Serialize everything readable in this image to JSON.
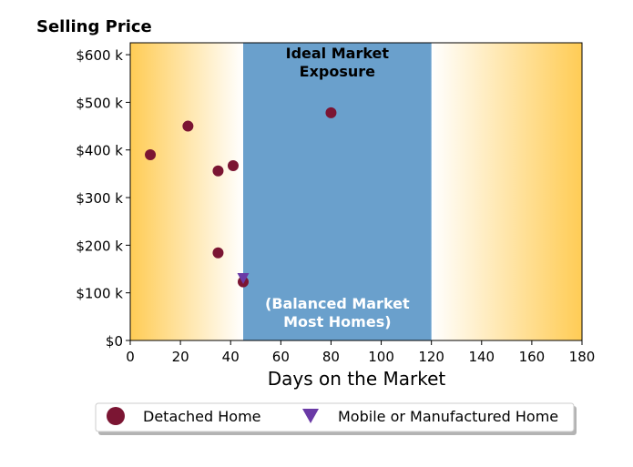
{
  "chart_data": {
    "type": "scatter",
    "title": "Selling Price",
    "xlabel": "Days on the Market",
    "ylabel": "",
    "xlim": [
      0,
      180
    ],
    "ylim": [
      0,
      625000
    ],
    "x_ticks": [
      0,
      20,
      40,
      60,
      80,
      100,
      120,
      140,
      160,
      180
    ],
    "x_tick_labels": [
      "0",
      "20",
      "40",
      "60",
      "80",
      "100",
      "120",
      "140",
      "160",
      "180"
    ],
    "y_ticks": [
      0,
      100000,
      200000,
      300000,
      400000,
      500000,
      600000
    ],
    "y_tick_labels": [
      "$0",
      "$100 k",
      "$200 k",
      "$300 k",
      "$400 k",
      "$500 k",
      "$600 k"
    ],
    "grid": false,
    "legend_position": "bottom-center",
    "background_gradient": {
      "edge_color": "#ffcc55",
      "center_color": "#ffffff",
      "fade_range": [
        0,
        45
      ],
      "fade_range_right": [
        120,
        180
      ]
    },
    "band": {
      "x_range": [
        45,
        120
      ],
      "color": "#6aa0cc",
      "label_top": [
        "Ideal Market",
        "Exposure"
      ],
      "label_bottom": [
        "(Balanced Market",
        "Most Homes)"
      ]
    },
    "series": [
      {
        "name": "Detached Home",
        "marker": "circle",
        "color": "#7b1533",
        "points": [
          {
            "x": 8,
            "y": 390000
          },
          {
            "x": 23,
            "y": 450000
          },
          {
            "x": 35,
            "y": 356000
          },
          {
            "x": 41,
            "y": 367000
          },
          {
            "x": 35,
            "y": 184000
          },
          {
            "x": 45,
            "y": 123000
          },
          {
            "x": 80,
            "y": 478000
          }
        ]
      },
      {
        "name": "Mobile or Manufactured Home",
        "marker": "triangle-down",
        "color": "#6a3aa6",
        "points": [
          {
            "x": 45,
            "y": 130000
          }
        ]
      }
    ]
  }
}
